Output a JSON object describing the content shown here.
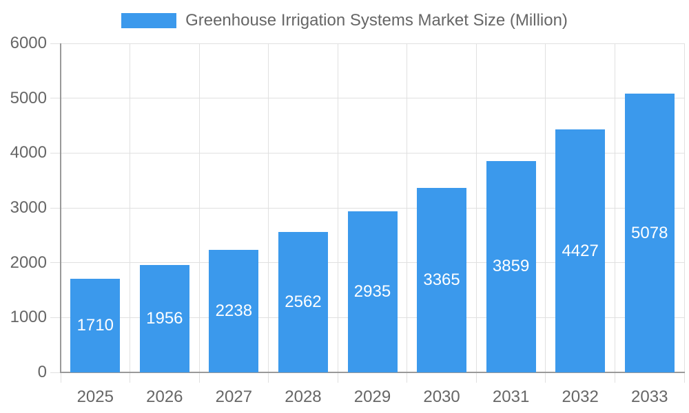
{
  "chart_data": {
    "type": "bar",
    "title": "Greenhouse Irrigation Systems Market Size (Million)",
    "legend": {
      "position": "top",
      "entries": [
        "Greenhouse Irrigation Systems Market Size (Million)"
      ]
    },
    "categories": [
      "2025",
      "2026",
      "2027",
      "2028",
      "2029",
      "2030",
      "2031",
      "2032",
      "2033"
    ],
    "series": [
      {
        "name": "Greenhouse Irrigation Systems Market Size (Million)",
        "values": [
          1710,
          1956,
          2238,
          2562,
          2935,
          3365,
          3859,
          4427,
          5078
        ]
      }
    ],
    "data_labels": [
      "1710",
      "1956",
      "2238",
      "2562",
      "2935",
      "3365",
      "3859",
      "4427",
      "5078"
    ],
    "xlabel": "",
    "ylabel": "",
    "ylim": [
      0,
      6000
    ],
    "y_ticks": [
      0,
      1000,
      2000,
      3000,
      4000,
      5000,
      6000
    ],
    "y_tick_labels": [
      "0",
      "1000",
      "2000",
      "3000",
      "4000",
      "5000",
      "6000"
    ],
    "grid": true,
    "colors": {
      "bar": "#3B99EC",
      "bar_label_text": "#FFFFFF",
      "axis_text": "#666666",
      "gridline": "#E0E0E0",
      "axis_line": "#999999",
      "background": "#FFFFFF"
    }
  }
}
